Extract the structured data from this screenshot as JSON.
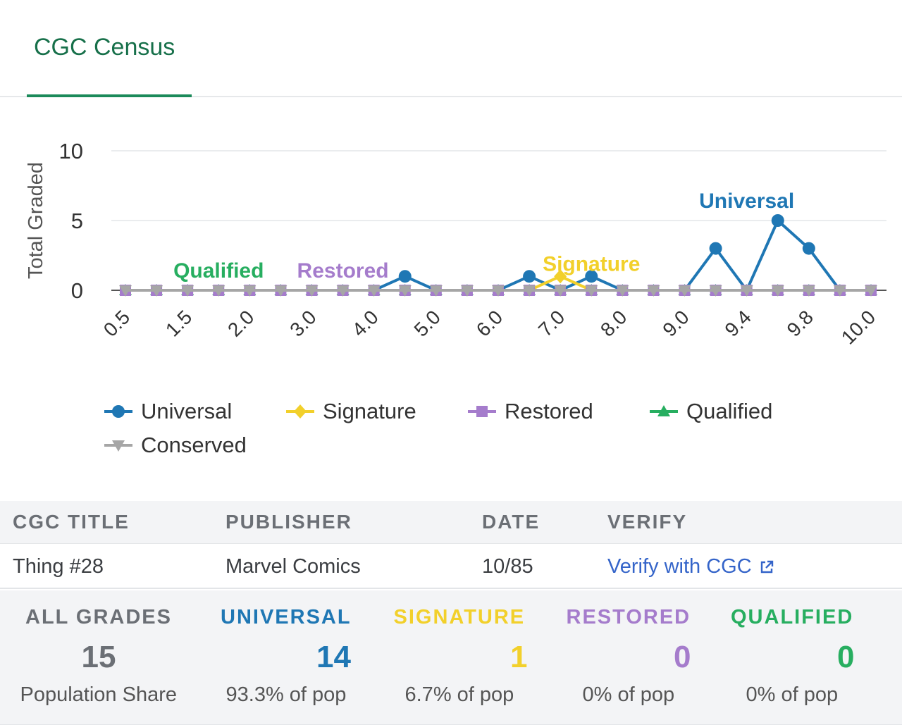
{
  "tabs": [
    {
      "label": "CGC Census",
      "active": true
    }
  ],
  "colors": {
    "universal": "#1f77b4",
    "signature": "#f2d02b",
    "restored": "#a57ccc",
    "qualified": "#27ae60",
    "conserved": "#a6a6a6",
    "tab_accent": "#1b8a5a",
    "link": "#3464c9"
  },
  "chart_data": {
    "type": "line",
    "ylabel": "Total Graded",
    "xlabel": "",
    "ylim": [
      0,
      10
    ],
    "yticks": [
      0,
      5,
      10
    ],
    "grid": true,
    "legend_position": "bottom",
    "x": [
      "0.5",
      "1.0",
      "1.5",
      "1.8",
      "2.0",
      "2.5",
      "3.0",
      "3.5",
      "4.0",
      "4.5",
      "5.0",
      "5.5",
      "6.0",
      "6.5",
      "7.0",
      "7.5",
      "8.0",
      "8.5",
      "9.0",
      "9.2",
      "9.4",
      "9.6",
      "9.8",
      "9.9",
      "10.0"
    ],
    "x_tick_labels": [
      "0.5",
      "1.5",
      "2.0",
      "3.0",
      "4.0",
      "5.0",
      "6.0",
      "7.0",
      "8.0",
      "9.0",
      "9.4",
      "9.8",
      "10.0"
    ],
    "series": [
      {
        "name": "Universal",
        "marker": "circle",
        "color": "#1f77b4",
        "values": [
          0,
          0,
          0,
          0,
          0,
          0,
          0,
          0,
          0,
          1,
          0,
          0,
          0,
          1,
          0,
          1,
          0,
          0,
          0,
          3,
          0,
          5,
          3,
          0,
          0
        ]
      },
      {
        "name": "Signature",
        "marker": "diamond",
        "color": "#f2d02b",
        "values": [
          0,
          0,
          0,
          0,
          0,
          0,
          0,
          0,
          0,
          0,
          0,
          0,
          0,
          0,
          1,
          0,
          0,
          0,
          0,
          0,
          0,
          0,
          0,
          0,
          0
        ]
      },
      {
        "name": "Restored",
        "marker": "square",
        "color": "#a57ccc",
        "values": [
          0,
          0,
          0,
          0,
          0,
          0,
          0,
          0,
          0,
          0,
          0,
          0,
          0,
          0,
          0,
          0,
          0,
          0,
          0,
          0,
          0,
          0,
          0,
          0,
          0
        ]
      },
      {
        "name": "Qualified",
        "marker": "triangle",
        "color": "#27ae60",
        "values": [
          0,
          0,
          0,
          0,
          0,
          0,
          0,
          0,
          0,
          0,
          0,
          0,
          0,
          0,
          0,
          0,
          0,
          0,
          0,
          0,
          0,
          0,
          0,
          0,
          0
        ]
      },
      {
        "name": "Conserved",
        "marker": "triangle-down",
        "color": "#a6a6a6",
        "values": [
          0,
          0,
          0,
          0,
          0,
          0,
          0,
          0,
          0,
          0,
          0,
          0,
          0,
          0,
          0,
          0,
          0,
          0,
          0,
          0,
          0,
          0,
          0,
          0,
          0
        ]
      }
    ],
    "annotations": [
      {
        "text": "Qualified",
        "series": "Qualified",
        "x": "1.8",
        "y": 0
      },
      {
        "text": "Restored",
        "series": "Restored",
        "x": "3.5",
        "y": 0
      },
      {
        "text": "Signature",
        "series": "Signature",
        "x": "7.5",
        "y": 1.5
      },
      {
        "text": "Universal",
        "series": "Universal",
        "x": "9.4",
        "y": 6
      }
    ]
  },
  "legend": [
    {
      "label": "Universal",
      "marker": "circle",
      "color": "#1f77b4"
    },
    {
      "label": "Signature",
      "marker": "diamond",
      "color": "#f2d02b"
    },
    {
      "label": "Restored",
      "marker": "square",
      "color": "#a57ccc"
    },
    {
      "label": "Qualified",
      "marker": "triangle",
      "color": "#27ae60"
    },
    {
      "label": "Conserved",
      "marker": "triangle-down",
      "color": "#a6a6a6"
    }
  ],
  "table": {
    "headers": [
      "CGC TITLE",
      "PUBLISHER",
      "DATE",
      "VERIFY"
    ],
    "row": {
      "title": "Thing #28",
      "publisher": "Marvel Comics",
      "date": "10/85",
      "verify_label": "Verify with CGC"
    }
  },
  "grades": [
    {
      "label": "ALL GRADES",
      "value": "15",
      "sub": "Population Share",
      "color": "#6b6f75"
    },
    {
      "label": "UNIVERSAL",
      "value": "14",
      "sub": "93.3% of pop",
      "color": "#1f77b4"
    },
    {
      "label": "SIGNATURE",
      "value": "1",
      "sub": "6.7% of pop",
      "color": "#f2d02b"
    },
    {
      "label": "RESTORED",
      "value": "0",
      "sub": "0% of pop",
      "color": "#a57ccc"
    },
    {
      "label": "QUALIFIED",
      "value": "0",
      "sub": "0% of pop",
      "color": "#27ae60"
    }
  ]
}
